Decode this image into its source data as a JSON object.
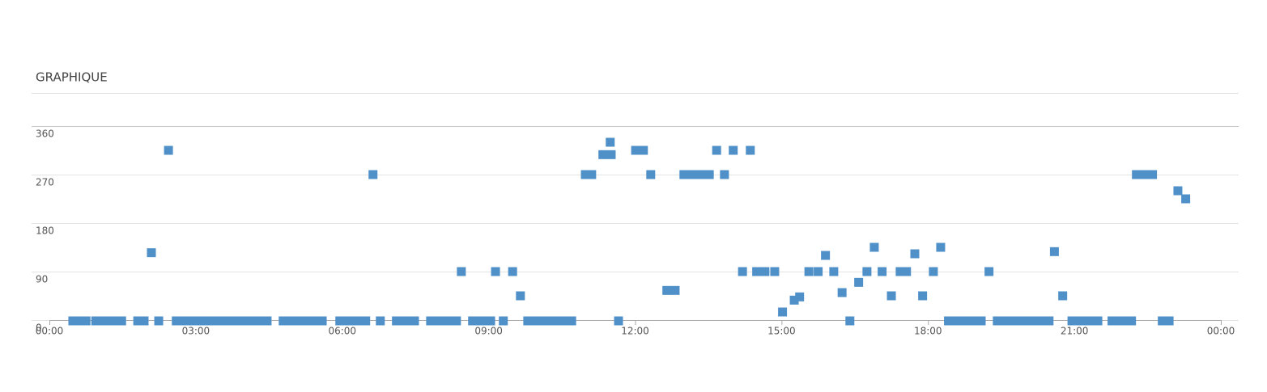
{
  "chart_data": {
    "type": "scatter",
    "title": "GRAPHIQUE",
    "series": [
      {
        "color": "#5090c8",
        "x": [
          0.48,
          0.61,
          0.75,
          0.95,
          1.08,
          1.21,
          1.34,
          1.48,
          1.81,
          1.94,
          2.24,
          2.6,
          2.74,
          2.87,
          3.0,
          3.13,
          3.27,
          3.4,
          3.53,
          3.67,
          3.8,
          3.96,
          4.1,
          4.23,
          4.36,
          4.46,
          4.79,
          4.93,
          5.06,
          5.19,
          5.32,
          5.46,
          5.59,
          5.95,
          6.09,
          6.22,
          6.35,
          6.48,
          6.78,
          7.11,
          7.25,
          7.38,
          7.48,
          7.81,
          7.94,
          8.08,
          8.21,
          8.34,
          8.67,
          8.81,
          8.94,
          9.04,
          9.3,
          9.8,
          9.93,
          10.07,
          10.2,
          10.33,
          10.46,
          10.6,
          10.7,
          11.66,
          16.4,
          18.42,
          18.59,
          18.72,
          18.86,
          18.99,
          19.09,
          19.42,
          19.55,
          19.68,
          19.82,
          19.95,
          20.08,
          20.22,
          20.35,
          20.48,
          20.95,
          21.08,
          21.21,
          21.34,
          21.48,
          21.77,
          21.91,
          22.04,
          22.17,
          22.8,
          22.94,
          2.44,
          2.09,
          6.63,
          8.44,
          9.14,
          9.49,
          9.65,
          10.98,
          11.11,
          11.34,
          11.51,
          11.49,
          12.01,
          12.17,
          12.32,
          12.65,
          12.82,
          13.0,
          13.13,
          13.28,
          13.42,
          13.52,
          13.67,
          13.83,
          14.01,
          14.36,
          14.2,
          14.49,
          14.66,
          14.86,
          15.02,
          15.26,
          15.37,
          15.56,
          15.75,
          15.9,
          16.07,
          16.24,
          16.58,
          16.75,
          16.9,
          17.06,
          17.25,
          17.43,
          17.56,
          17.73,
          17.89,
          18.11,
          18.26,
          19.25,
          20.59,
          20.76,
          22.27,
          22.44,
          22.6,
          23.12,
          23.28
        ],
        "values": [
          0,
          0,
          0,
          0,
          0,
          0,
          0,
          0,
          0,
          0,
          0,
          0,
          0,
          0,
          0,
          0,
          0,
          0,
          0,
          0,
          0,
          0,
          0,
          0,
          0,
          0,
          0,
          0,
          0,
          0,
          0,
          0,
          0,
          0,
          0,
          0,
          0,
          0,
          0,
          0,
          0,
          0,
          0,
          0,
          0,
          0,
          0,
          0,
          0,
          0,
          0,
          0,
          0,
          0,
          0,
          0,
          0,
          0,
          0,
          0,
          0,
          0,
          0,
          0,
          0,
          0,
          0,
          0,
          0,
          0,
          0,
          0,
          0,
          0,
          0,
          0,
          0,
          0,
          0,
          0,
          0,
          0,
          0,
          0,
          0,
          0,
          0,
          0,
          0,
          315,
          125,
          270,
          90,
          90,
          90,
          45,
          270,
          270,
          307,
          307,
          330,
          315,
          315,
          270,
          55,
          55,
          270,
          270,
          270,
          270,
          270,
          315,
          270,
          315,
          315,
          90,
          90,
          90,
          90,
          15,
          37,
          43,
          90,
          90,
          120,
          90,
          51,
          70,
          90,
          135,
          90,
          45,
          90,
          90,
          123,
          45,
          90,
          135,
          90,
          127,
          45,
          270,
          270,
          270,
          240,
          225
        ]
      }
    ],
    "xlim": [
      0,
      24
    ],
    "xticks": [
      {
        "value": 0,
        "label": "00:00"
      },
      {
        "value": 3,
        "label": "03:00"
      },
      {
        "value": 6,
        "label": "06:00"
      },
      {
        "value": 9,
        "label": "09:00"
      },
      {
        "value": 12,
        "label": "12:00"
      },
      {
        "value": 15,
        "label": "15:00"
      },
      {
        "value": 18,
        "label": "18:00"
      },
      {
        "value": 21,
        "label": "21:00"
      },
      {
        "value": 24,
        "label": "00:00"
      }
    ],
    "ylim": [
      0,
      360
    ],
    "yticks": [
      0,
      90,
      180,
      270,
      360
    ],
    "grid": true
  }
}
